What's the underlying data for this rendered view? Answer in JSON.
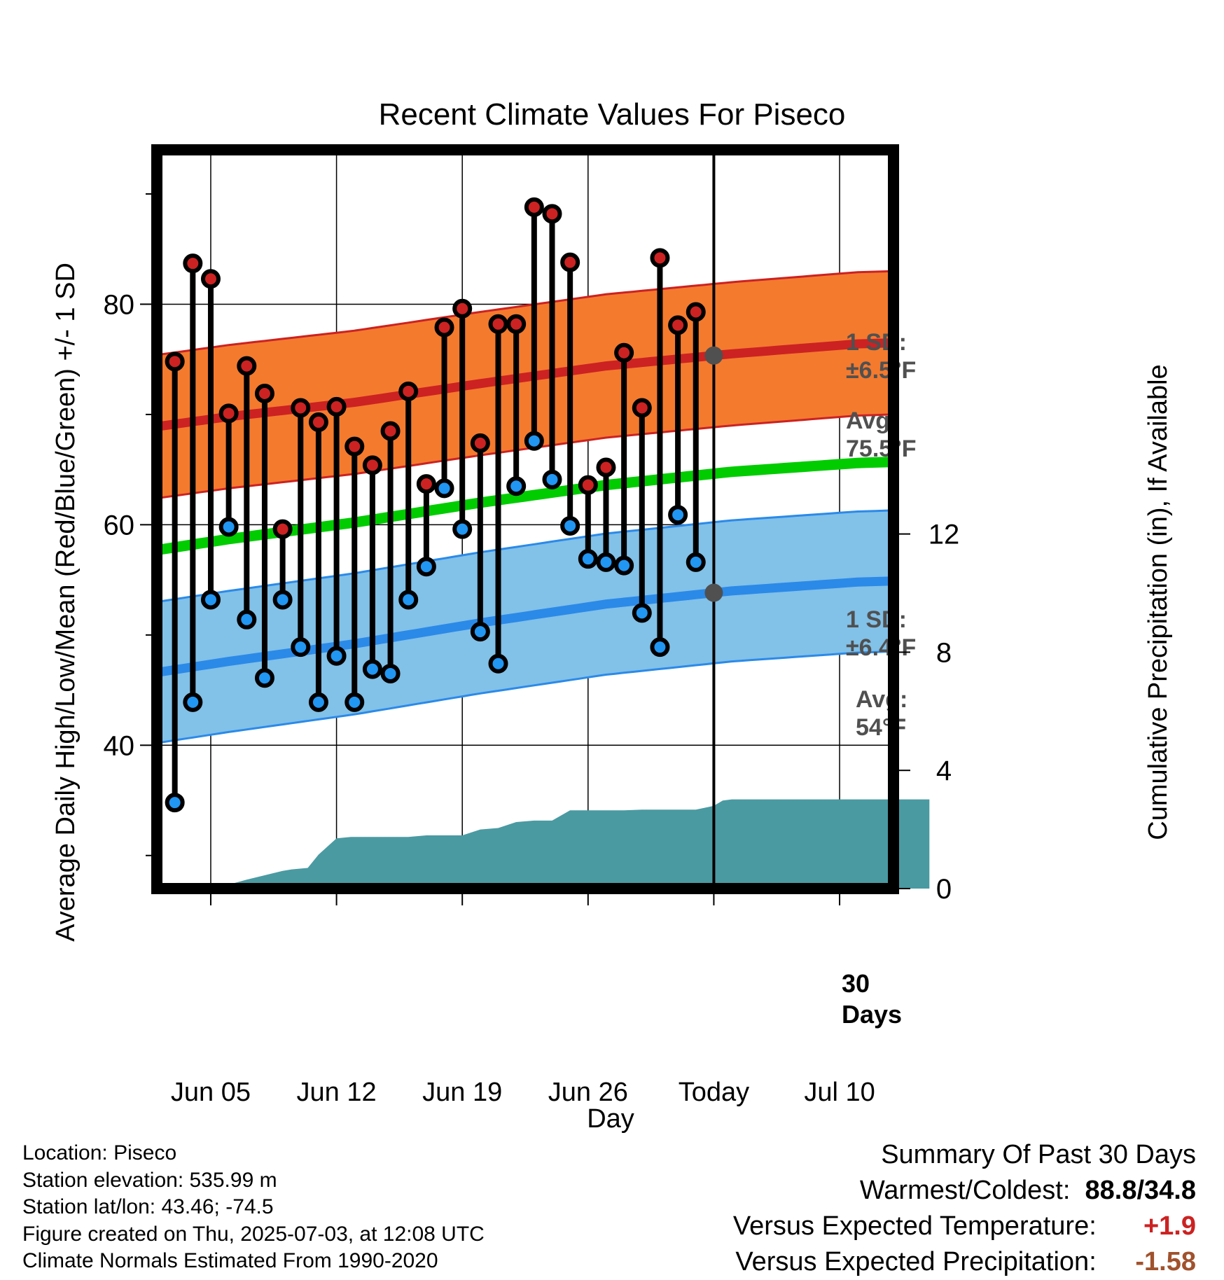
{
  "chart_data": {
    "type": "line",
    "title": "Recent Climate Values For Piseco",
    "xlabel": "Day",
    "ylabel_left": "Average Daily High/Low/Mean (Red/Blue/Green) +/- 1 SD",
    "ylabel_right": "Cumulative Precipitation (in), If Available",
    "x_tick_labels": [
      "Jun 05",
      "Jun 12",
      "Jun 19",
      "Jun 26",
      "Today",
      "Jul 10"
    ],
    "x_tick_dates": [
      "2025-06-05",
      "2025-06-12",
      "2025-06-19",
      "2025-06-26",
      "2025-07-03",
      "2025-07-10"
    ],
    "xlim": [
      "2025-06-02",
      "2025-07-13"
    ],
    "y_left_ticks": [
      40,
      60,
      80
    ],
    "y_left_range": [
      27,
      94
    ],
    "y_right_ticks": [
      0,
      4,
      8,
      12
    ],
    "y_right_range": [
      0,
      25
    ],
    "grid": true,
    "daily_dates": [
      "2025-06-03",
      "2025-06-04",
      "2025-06-05",
      "2025-06-06",
      "2025-06-07",
      "2025-06-08",
      "2025-06-09",
      "2025-06-10",
      "2025-06-11",
      "2025-06-12",
      "2025-06-13",
      "2025-06-14",
      "2025-06-15",
      "2025-06-16",
      "2025-06-17",
      "2025-06-18",
      "2025-06-19",
      "2025-06-20",
      "2025-06-21",
      "2025-06-22",
      "2025-06-23",
      "2025-06-24",
      "2025-06-25",
      "2025-06-26",
      "2025-06-27",
      "2025-06-28",
      "2025-06-29",
      "2025-06-30",
      "2025-07-01",
      "2025-07-02"
    ],
    "daily_high": [
      74.8,
      83.7,
      82.3,
      70.1,
      74.4,
      71.9,
      59.6,
      70.6,
      69.3,
      70.7,
      67.1,
      65.4,
      68.5,
      72.1,
      63.7,
      77.9,
      79.6,
      67.4,
      78.2,
      78.2,
      88.8,
      88.2,
      83.8,
      63.6,
      65.2,
      75.6,
      70.6,
      84.2,
      78.1,
      79.3
    ],
    "daily_low": [
      34.8,
      43.9,
      53.2,
      59.8,
      51.4,
      46.1,
      53.2,
      48.9,
      43.9,
      48.1,
      43.9,
      46.9,
      46.5,
      53.2,
      56.2,
      63.3,
      59.6,
      50.3,
      47.4,
      63.5,
      67.6,
      64.1,
      59.9,
      56.9,
      56.6,
      56.3,
      52.0,
      48.9,
      60.9,
      56.6
    ],
    "normal_high_avg": [
      [
        0,
        68.9
      ],
      [
        4,
        69.8
      ],
      [
        11,
        71.1
      ],
      [
        18,
        72.8
      ],
      [
        25,
        74.4
      ],
      [
        32,
        75.5
      ],
      [
        39,
        76.4
      ],
      [
        43,
        76.6
      ]
    ],
    "normal_high_sd": 6.5,
    "normal_low_avg": [
      [
        0,
        46.6
      ],
      [
        4,
        47.6
      ],
      [
        11,
        49.2
      ],
      [
        18,
        51.1
      ],
      [
        25,
        52.8
      ],
      [
        32,
        54.0
      ],
      [
        39,
        54.8
      ],
      [
        43,
        55.0
      ]
    ],
    "normal_low_sd": 6.4,
    "normal_mean": [
      [
        0,
        57.7
      ],
      [
        4,
        58.7
      ],
      [
        11,
        60.2
      ],
      [
        18,
        62.0
      ],
      [
        25,
        63.6
      ],
      [
        32,
        64.8
      ],
      [
        39,
        65.6
      ],
      [
        43,
        65.8
      ]
    ],
    "precip_cumulative": [
      [
        0,
        0
      ],
      [
        3,
        0
      ],
      [
        3.5,
        0.05
      ],
      [
        5,
        0.3
      ],
      [
        6,
        0.45
      ],
      [
        7,
        0.6
      ],
      [
        7.5,
        0.65
      ],
      [
        8.4,
        0.7
      ],
      [
        9,
        1.15
      ],
      [
        10,
        1.7
      ],
      [
        10.8,
        1.75
      ],
      [
        12,
        1.75
      ],
      [
        13,
        1.75
      ],
      [
        14,
        1.75
      ],
      [
        15,
        1.8
      ],
      [
        16,
        1.8
      ],
      [
        17,
        1.8
      ],
      [
        18,
        2.0
      ],
      [
        19,
        2.05
      ],
      [
        20,
        2.25
      ],
      [
        21,
        2.3
      ],
      [
        22,
        2.3
      ],
      [
        23,
        2.65
      ],
      [
        24,
        2.65
      ],
      [
        25,
        2.65
      ],
      [
        26,
        2.65
      ],
      [
        27,
        2.67
      ],
      [
        28,
        2.67
      ],
      [
        29,
        2.67
      ],
      [
        30,
        2.67
      ],
      [
        31,
        2.8
      ],
      [
        31.5,
        2.98
      ],
      [
        32,
        3.02
      ],
      [
        43,
        3.02
      ]
    ],
    "annotations": {
      "high_sd": [
        "1 SD:",
        "±6.5°F"
      ],
      "high_avg": [
        "Avg:",
        "75.5°F"
      ],
      "low_sd": [
        "1 SD:",
        "±6.4°F"
      ],
      "low_avg": [
        "Avg:",
        "54°F"
      ],
      "window": [
        "30",
        "Days"
      ]
    },
    "colors": {
      "high_band": "#f47a2e",
      "high_line": "#cc2222",
      "low_band": "#82c1e8",
      "low_line": "#2b8ae8",
      "mean_line": "#00cc00",
      "precip": "#4a9aa2",
      "high_dot": "#cc2222",
      "low_dot": "#2196f3",
      "annotation_text": "#505050"
    }
  },
  "meta": {
    "location": "Location: Piseco",
    "elevation": "Station elevation: 535.99 m",
    "latlon": "Station lat/lon: 43.46; -74.5",
    "created": "Figure created on Thu, 2025-07-03, at 12:08 UTC",
    "normals": "Climate Normals Estimated From 1990-2020"
  },
  "summary": {
    "title": "Summary Of Past 30 Days",
    "warm_cold_label": "Warmest/Coldest:",
    "warm_cold_value": "88.8/34.8",
    "temp_label": "Versus Expected Temperature:",
    "temp_value": "+1.9",
    "temp_color": "#cc2222",
    "precip_label": "Versus Expected Precipitation:",
    "precip_value": "-1.58",
    "precip_color": "#a0522d"
  }
}
